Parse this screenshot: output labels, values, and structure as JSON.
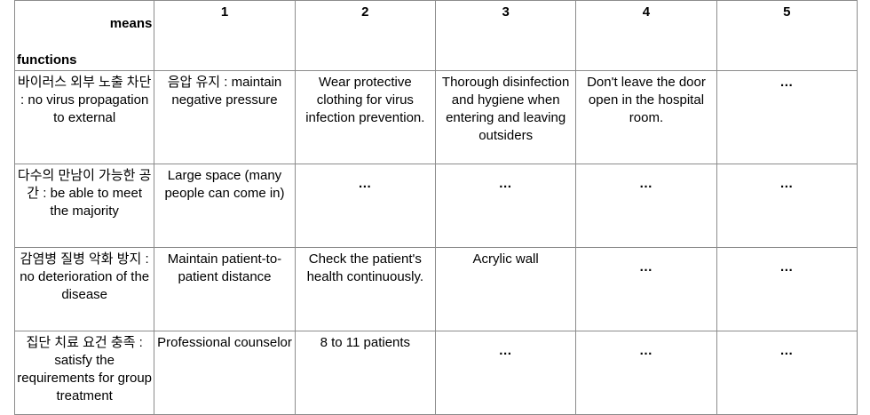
{
  "header": {
    "means_label": "means",
    "functions_label": "functions",
    "columns": [
      "1",
      "2",
      "3",
      "4",
      "5"
    ]
  },
  "rows": [
    {
      "function": "바이러스 외부 노출 차단 : no virus propagation to external",
      "cells": [
        "음압 유지 : maintain negative pressure",
        "Wear protective clothing for virus infection prevention.",
        "Thorough disinfection and hygiene when entering and leaving outsiders",
        "Don't leave the door open in the hospital room.",
        "…"
      ]
    },
    {
      "function": "다수의 만남이 가능한 공간 : be able to meet the majority",
      "cells": [
        "Large space (many people can come in)",
        "…",
        "…",
        "…",
        "…"
      ]
    },
    {
      "function": "감염병 질병 악화 방지 : no deterioration of the disease",
      "cells": [
        "Maintain patient-to-patient distance",
        "Check the patient's health continuously.",
        "Acrylic wall",
        "…",
        "…"
      ]
    },
    {
      "function": "집단 치료 요건 충족 : satisfy the requirements for group treatment",
      "cells": [
        "Professional counselor",
        "8 to 11 patients",
        "…",
        "…",
        "…"
      ]
    }
  ]
}
